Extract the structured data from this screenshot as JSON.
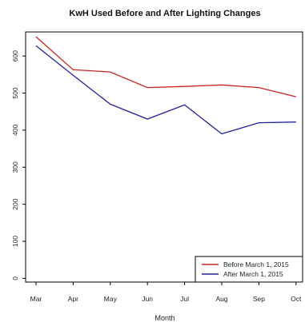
{
  "chart_data": {
    "type": "line",
    "title": "KwH Used Before and After Lighting Changes",
    "xlabel": "Month",
    "ylabel": "",
    "categories": [
      "Mar",
      "Apr",
      "May",
      "Jun",
      "Jul",
      "Aug",
      "Sep",
      "Oct"
    ],
    "yticks": [
      "0",
      "100",
      "200",
      "300",
      "400",
      "500",
      "600"
    ],
    "ylim": [
      -10,
      665
    ],
    "grid": false,
    "legend_position": "bottom-right",
    "series": [
      {
        "name": "Before March 1, 2015",
        "color": "#cc2222",
        "values": [
          652,
          563,
          557,
          515,
          518,
          522,
          515,
          490
        ]
      },
      {
        "name": "After March 1, 2015",
        "color": "#222299",
        "values": [
          628,
          548,
          470,
          430,
          468,
          390,
          420,
          422
        ]
      }
    ]
  }
}
